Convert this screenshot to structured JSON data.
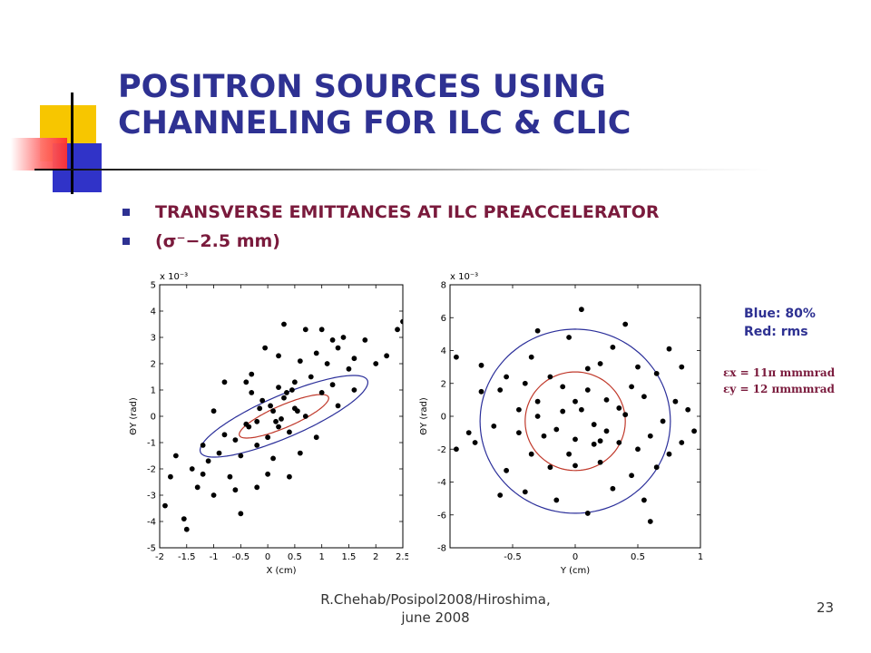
{
  "slide": {
    "title": "POSITRON SOURCES USING CHANNELING FOR ILC & CLIC",
    "bullets": [
      "TRANSVERSE EMITTANCES AT ILC PREACCELERATOR",
      "(σ⁻−2.5 mm)"
    ],
    "legend": {
      "blue": "Blue: 80%",
      "red": "Red: rms"
    },
    "emittance": {
      "x": "εx = 11π mmmrad",
      "y": "εy = 12 πmmmrad"
    },
    "footer": {
      "line1": "R.Chehab/Posipol2008/Hiroshima,",
      "line2": "june 2008"
    },
    "page_number": "23"
  },
  "colors": {
    "title": "#2e3192",
    "bullet_text": "#7a1a3c",
    "ellipse_80": "#2b2f9a",
    "ellipse_rms": "#c0392b"
  },
  "plots": [
    {
      "id": "left",
      "xlabel": "X (cm)",
      "ylabel": "ΘY (rad)",
      "scale": "x 10⁻³",
      "xlim": [
        -2,
        2.5
      ],
      "ylim": [
        -5,
        5
      ],
      "xticks": [
        -2,
        -1.5,
        -1,
        -0.5,
        0,
        0.5,
        1,
        1.5,
        2,
        2.5
      ],
      "yticks": [
        -5,
        -4,
        -3,
        -2,
        -1,
        0,
        1,
        2,
        3,
        4,
        5
      ],
      "ellipses": [
        {
          "name": "80%",
          "cx": 0.3,
          "cy": 0.0,
          "rx": 2.1,
          "ry": 0.64,
          "angle_deg": 45
        },
        {
          "name": "rms",
          "cx": 0.3,
          "cy": 0.0,
          "rx": 1.12,
          "ry": 0.34,
          "angle_deg": 45
        }
      ],
      "points": [
        [
          -1.8,
          -2.3
        ],
        [
          -1.9,
          -3.4
        ],
        [
          -1.55,
          -3.9
        ],
        [
          -1.7,
          -1.5
        ],
        [
          -1.2,
          -1.1
        ],
        [
          -1.3,
          -2.7
        ],
        [
          -1.0,
          -3.0
        ],
        [
          -1.4,
          -2.0
        ],
        [
          -1.2,
          -2.2
        ],
        [
          -0.9,
          -1.4
        ],
        [
          -0.8,
          -0.7
        ],
        [
          -0.6,
          -0.9
        ],
        [
          -0.7,
          -2.3
        ],
        [
          -0.5,
          -1.5
        ],
        [
          -0.4,
          -0.3
        ],
        [
          -0.3,
          0.9
        ],
        [
          -0.2,
          -0.2
        ],
        [
          -0.2,
          -1.1
        ],
        [
          -0.1,
          0.6
        ],
        [
          0.0,
          -0.8
        ],
        [
          0.1,
          0.2
        ],
        [
          0.2,
          1.1
        ],
        [
          0.2,
          -0.4
        ],
        [
          0.3,
          0.7
        ],
        [
          0.4,
          -0.6
        ],
        [
          0.5,
          0.3
        ],
        [
          0.5,
          1.3
        ],
        [
          0.6,
          -1.4
        ],
        [
          0.7,
          0.0
        ],
        [
          0.8,
          1.5
        ],
        [
          0.9,
          2.4
        ],
        [
          1.0,
          0.9
        ],
        [
          1.1,
          2.0
        ],
        [
          1.2,
          1.2
        ],
        [
          1.3,
          2.6
        ],
        [
          1.4,
          3.0
        ],
        [
          1.5,
          1.8
        ],
        [
          1.6,
          2.2
        ],
        [
          1.8,
          2.9
        ],
        [
          2.0,
          2.0
        ],
        [
          2.2,
          2.3
        ],
        [
          2.4,
          3.3
        ],
        [
          2.5,
          3.6
        ],
        [
          1.0,
          3.3
        ],
        [
          1.2,
          2.9
        ],
        [
          -0.3,
          1.6
        ],
        [
          0.0,
          -2.2
        ],
        [
          -0.6,
          -2.8
        ],
        [
          -1.1,
          -1.7
        ],
        [
          0.2,
          2.3
        ],
        [
          0.6,
          2.1
        ],
        [
          -0.4,
          1.3
        ],
        [
          0.1,
          -1.6
        ],
        [
          0.9,
          -0.8
        ],
        [
          1.6,
          1.0
        ],
        [
          -0.8,
          1.3
        ],
        [
          -1.0,
          0.2
        ],
        [
          -0.2,
          -2.7
        ],
        [
          0.4,
          -2.3
        ],
        [
          1.3,
          0.4
        ],
        [
          -1.5,
          -4.3
        ],
        [
          -0.5,
          -3.7
        ],
        [
          0.7,
          3.3
        ],
        [
          0.3,
          3.5
        ],
        [
          -0.05,
          2.6
        ],
        [
          0.55,
          0.2
        ],
        [
          0.05,
          0.4
        ],
        [
          0.25,
          -0.1
        ],
        [
          -0.15,
          0.3
        ],
        [
          0.35,
          0.9
        ],
        [
          0.15,
          -0.2
        ],
        [
          -0.35,
          -0.4
        ],
        [
          0.45,
          1.0
        ]
      ]
    },
    {
      "id": "right",
      "xlabel": "Y (cm)",
      "ylabel": "ΘY (rad)",
      "scale": "x 10⁻³",
      "xlim": [
        -1,
        1
      ],
      "ylim": [
        -8,
        8
      ],
      "xticks": [
        -0.5,
        0,
        0.5,
        1
      ],
      "yticks": [
        -8,
        -6,
        -4,
        -2,
        0,
        2,
        4,
        6,
        8
      ],
      "ellipses": [
        {
          "name": "80%",
          "cx": 0.0,
          "cy": -0.3,
          "rx": 0.76,
          "ry": 5.6,
          "angle_deg": 0
        },
        {
          "name": "rms",
          "cx": 0.0,
          "cy": -0.3,
          "rx": 0.4,
          "ry": 3.0,
          "angle_deg": 0
        }
      ],
      "points": [
        [
          -0.85,
          -1.0
        ],
        [
          -0.8,
          -1.6
        ],
        [
          -0.75,
          3.1
        ],
        [
          -0.75,
          1.5
        ],
        [
          -0.65,
          -0.6
        ],
        [
          -0.6,
          1.6
        ],
        [
          -0.55,
          -3.3
        ],
        [
          -0.55,
          2.4
        ],
        [
          -0.45,
          0.4
        ],
        [
          -0.45,
          -1.0
        ],
        [
          -0.4,
          -4.6
        ],
        [
          -0.35,
          3.6
        ],
        [
          -0.35,
          -2.3
        ],
        [
          -0.3,
          5.2
        ],
        [
          -0.3,
          0.9
        ],
        [
          -0.25,
          -1.2
        ],
        [
          -0.2,
          -3.1
        ],
        [
          -0.2,
          2.4
        ],
        [
          -0.15,
          -5.1
        ],
        [
          -0.1,
          0.3
        ],
        [
          -0.1,
          1.8
        ],
        [
          -0.05,
          4.8
        ],
        [
          0.0,
          -1.4
        ],
        [
          0.0,
          -3.0
        ],
        [
          0.05,
          0.4
        ],
        [
          0.05,
          6.5
        ],
        [
          0.1,
          -5.9
        ],
        [
          0.1,
          2.9
        ],
        [
          0.15,
          -0.5
        ],
        [
          0.15,
          -1.7
        ],
        [
          0.2,
          3.2
        ],
        [
          0.2,
          -2.8
        ],
        [
          0.25,
          1.0
        ],
        [
          0.3,
          -4.4
        ],
        [
          0.3,
          4.2
        ],
        [
          0.35,
          -1.6
        ],
        [
          0.4,
          0.1
        ],
        [
          0.4,
          5.6
        ],
        [
          0.45,
          -3.6
        ],
        [
          0.5,
          -2.0
        ],
        [
          0.5,
          3.0
        ],
        [
          0.55,
          -5.1
        ],
        [
          0.55,
          1.2
        ],
        [
          0.6,
          -1.2
        ],
        [
          0.65,
          2.6
        ],
        [
          0.65,
          -3.1
        ],
        [
          0.7,
          -0.3
        ],
        [
          0.75,
          4.1
        ],
        [
          0.75,
          -2.3
        ],
        [
          0.8,
          0.9
        ],
        [
          0.85,
          -1.6
        ],
        [
          0.9,
          0.4
        ],
        [
          0.95,
          -0.9
        ],
        [
          -0.95,
          3.6
        ],
        [
          -0.95,
          -2.0
        ],
        [
          0.6,
          -6.4
        ],
        [
          -0.6,
          -4.8
        ],
        [
          -0.15,
          -0.8
        ],
        [
          0.25,
          -0.9
        ],
        [
          -0.05,
          -2.3
        ],
        [
          0.1,
          1.6
        ],
        [
          0.35,
          0.5
        ],
        [
          -0.3,
          0.0
        ],
        [
          0.0,
          0.9
        ],
        [
          0.2,
          -1.5
        ],
        [
          -0.4,
          2.0
        ],
        [
          0.45,
          1.8
        ],
        [
          0.85,
          3.0
        ]
      ]
    }
  ]
}
